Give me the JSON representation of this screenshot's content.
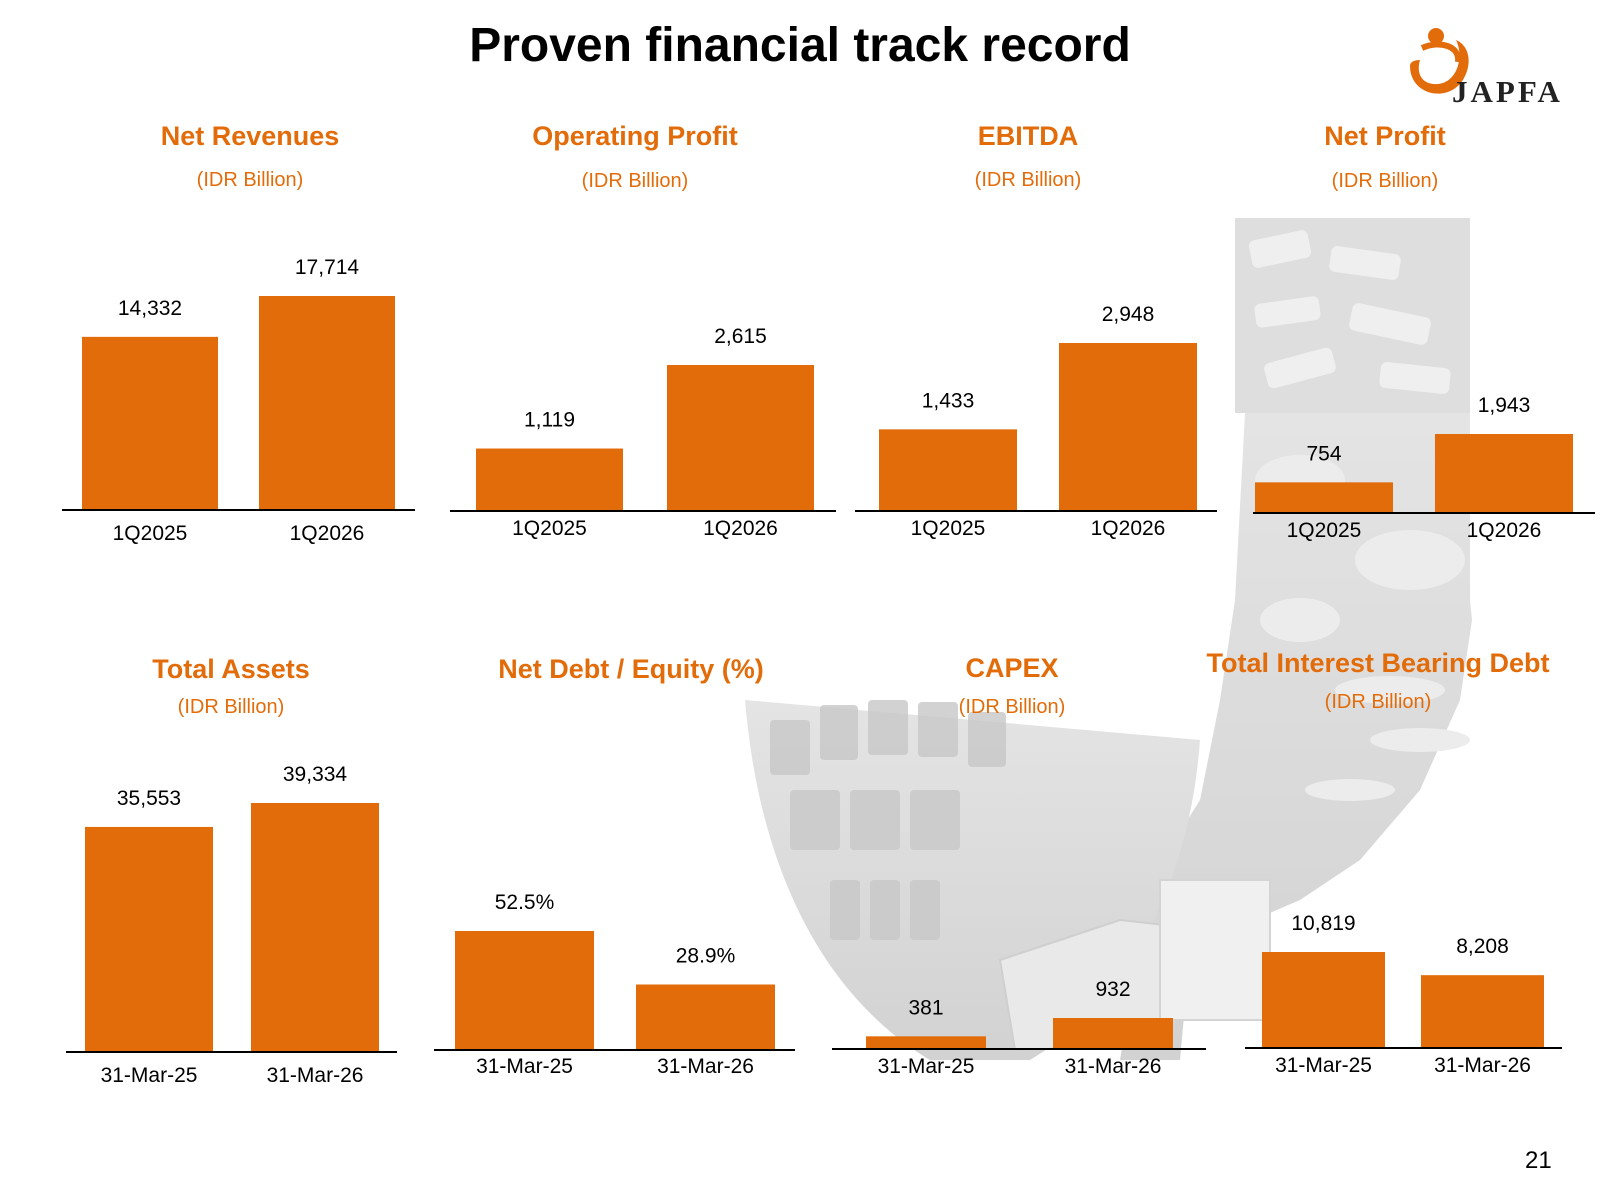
{
  "page": {
    "title": "Proven financial track record",
    "logo_text": "JAPFA",
    "page_number": "21",
    "accent_color": "#E36C0A",
    "title_color": "#E36C0A"
  },
  "chart_data": [
    {
      "type": "bar",
      "title": "Net Revenues",
      "subtitle": "(IDR Billion)",
      "categories": [
        "1Q2025",
        "1Q2026"
      ],
      "values": [
        14332,
        17714
      ],
      "labels": [
        "14,332",
        "17,714"
      ]
    },
    {
      "type": "bar",
      "title": "Operating Profit",
      "subtitle": "(IDR Billion)",
      "categories": [
        "1Q2025",
        "1Q2026"
      ],
      "values": [
        1119,
        2615
      ],
      "labels": [
        "1,119",
        "2,615"
      ]
    },
    {
      "type": "bar",
      "title": "EBITDA",
      "subtitle": "(IDR Billion)",
      "categories": [
        "1Q2025",
        "1Q2026"
      ],
      "values": [
        1433,
        2948
      ],
      "labels": [
        "1,433",
        "2,948"
      ]
    },
    {
      "type": "bar",
      "title": "Net Profit",
      "subtitle": "(IDR Billion)",
      "categories": [
        "1Q2025",
        "1Q2026"
      ],
      "values": [
        754,
        1943
      ],
      "labels": [
        "754",
        "1,943"
      ]
    },
    {
      "type": "bar",
      "title": "Total Assets",
      "subtitle": "(IDR Billion)",
      "categories": [
        "31-Mar-25",
        "31-Mar-26"
      ],
      "values": [
        35553,
        39334
      ],
      "labels": [
        "35,553",
        "39,334"
      ]
    },
    {
      "type": "bar",
      "title": "Net Debt / Equity (%)",
      "subtitle": "",
      "categories": [
        "31-Mar-25",
        "31-Mar-26"
      ],
      "values": [
        52.5,
        28.9
      ],
      "labels": [
        "52.5%",
        "28.9%"
      ]
    },
    {
      "type": "bar",
      "title": "CAPEX",
      "subtitle": "(IDR Billion)",
      "categories": [
        "31-Mar-25",
        "31-Mar-26"
      ],
      "values": [
        381,
        932
      ],
      "labels": [
        "381",
        "932"
      ]
    },
    {
      "type": "bar",
      "title": "Total Interest Bearing Debt",
      "subtitle": "(IDR Billion)",
      "categories": [
        "31-Mar-25",
        "31-Mar-26"
      ],
      "values": [
        10819,
        8208
      ],
      "labels": [
        "10,819",
        "8,208"
      ]
    }
  ]
}
